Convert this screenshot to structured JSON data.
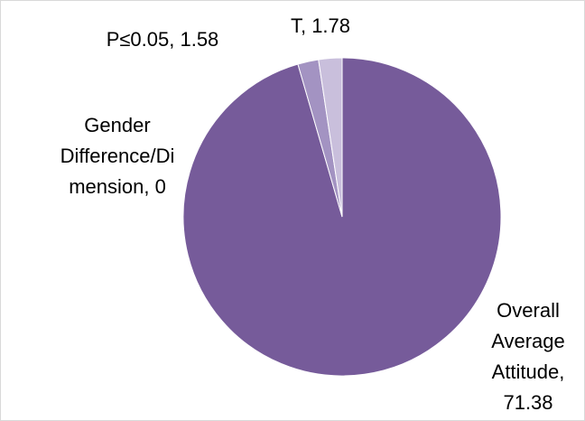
{
  "chart_data": {
    "type": "pie",
    "categories": [
      "Gender Difference/Dimension",
      "Overall Average Attitude",
      "P≤0.05",
      "T"
    ],
    "values": [
      0,
      71.38,
      1.58,
      1.78
    ],
    "value_labels": [
      [
        "Gender",
        "Difference/Di",
        "mension, 0"
      ],
      [
        "Overall",
        "Average",
        "Attitude,",
        "71.38"
      ],
      [
        "P≤0.05, 1.58"
      ],
      [
        "T, 1.78"
      ]
    ],
    "colors": [
      "#5f4785",
      "#765b9a",
      "#a393c2",
      "#c9bfdc"
    ]
  }
}
